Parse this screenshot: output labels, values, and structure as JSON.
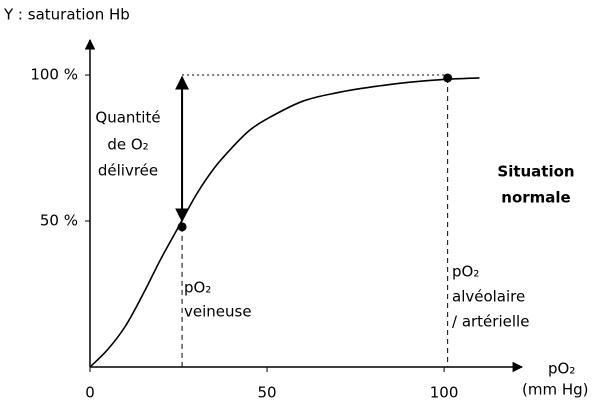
{
  "chart_data": {
    "type": "line",
    "ylabel": "Y : saturation Hb",
    "xlabel": [
      "pO₂",
      "(mm Hg)"
    ],
    "xlim": [
      0,
      122
    ],
    "ylim": [
      0,
      112
    ],
    "xticks": [
      0,
      50,
      100
    ],
    "yticks": [
      {
        "value": 50,
        "label": "50 %"
      },
      {
        "value": 100,
        "label": "100 %"
      }
    ],
    "series": [
      {
        "color": "#000000",
        "x": [
          0,
          5,
          10,
          15,
          20,
          25,
          30,
          35,
          40,
          45,
          50,
          60,
          70,
          80,
          90,
          100,
          110
        ],
        "values": [
          0,
          6,
          14,
          25,
          37,
          48,
          59,
          68,
          75,
          81,
          85,
          91,
          94,
          96,
          97.5,
          98.5,
          99
        ]
      }
    ],
    "markers": [
      {
        "x": 26,
        "y": 48
      },
      {
        "x": 101,
        "y": 99
      }
    ],
    "annotations": {
      "delivered": [
        "Quantité",
        "de O₂",
        "délivrée"
      ],
      "venous": [
        "pO₂",
        "veineuse"
      ],
      "arterial": [
        "pO₂",
        "alvéolaire",
        "/ artérielle"
      ],
      "situation": [
        "Situation",
        "normale"
      ]
    }
  }
}
